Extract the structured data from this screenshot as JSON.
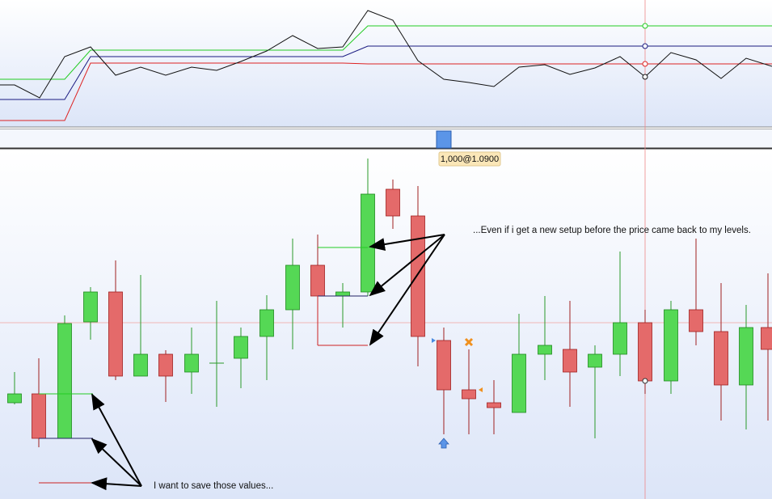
{
  "order_tooltip": "1,000@1.0900",
  "annotations": [
    "...Even if i get a new setup before the price came back to my levels.",
    "I want to save those values..."
  ]
}
